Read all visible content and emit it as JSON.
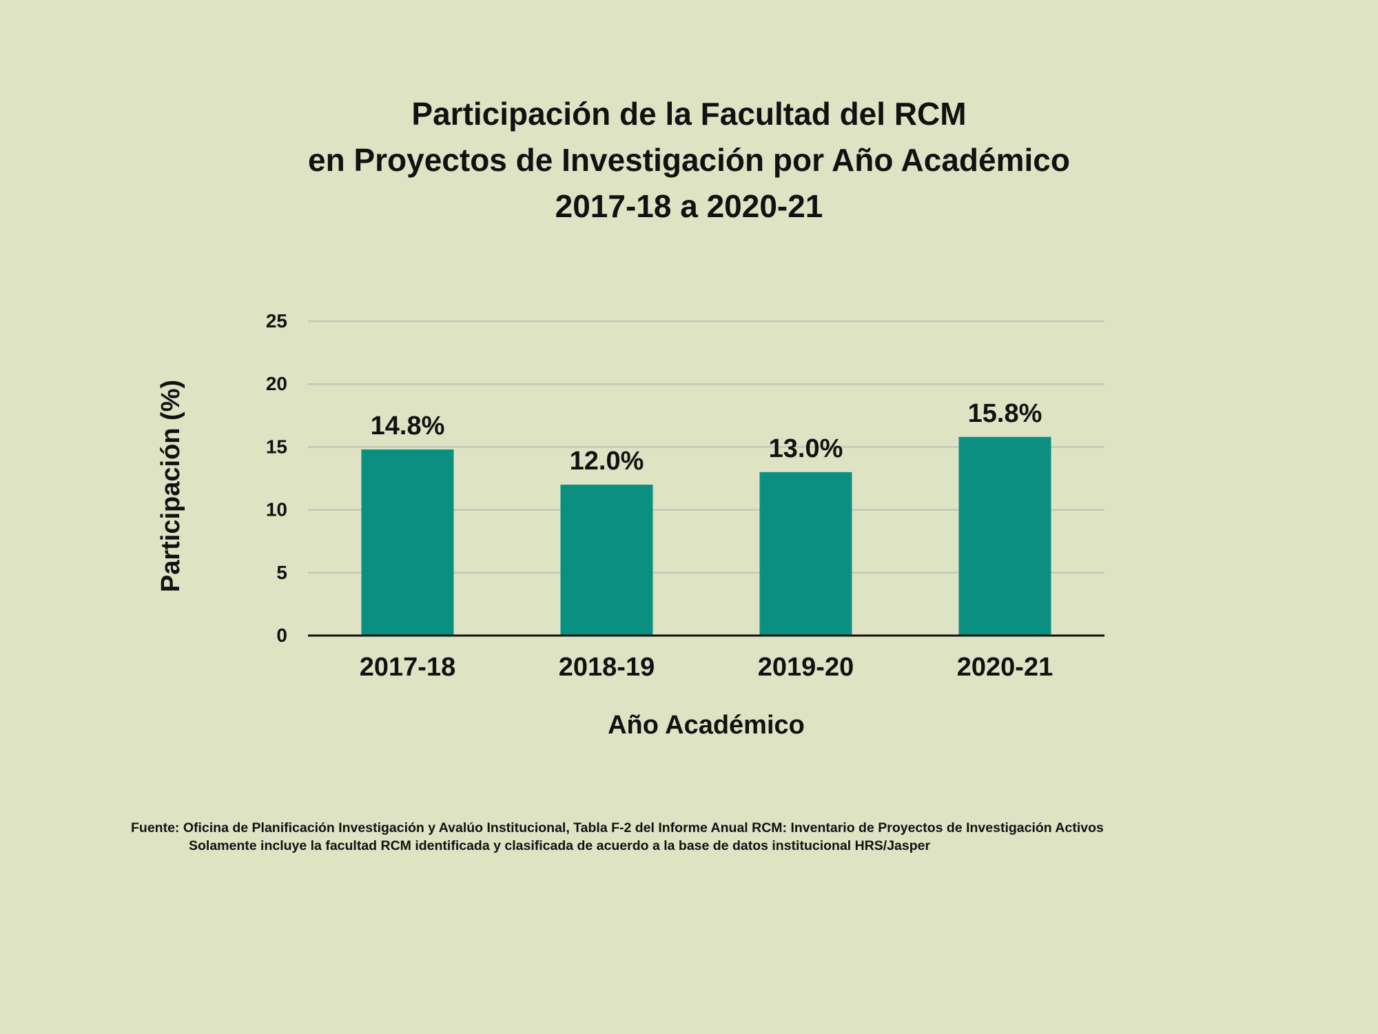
{
  "chart_data": {
    "type": "bar",
    "title": [
      "Participación de la Facultad del RCM",
      "en Proyectos de Investigación por Año Académico",
      "2017-18 a 2020-21"
    ],
    "categories": [
      "2017-18",
      "2018-19",
      "2019-20",
      "2020-21"
    ],
    "values": [
      14.8,
      12.0,
      13.0,
      15.8
    ],
    "data_labels": [
      "14.8%",
      "12.0%",
      "13.0%",
      "15.8%"
    ],
    "xlabel": "Año Académico",
    "ylabel": "Participación (%)",
    "ylim": [
      0,
      25
    ],
    "yticks": [
      0,
      5,
      10,
      15,
      20,
      25
    ],
    "grid": true,
    "legend": "none",
    "bar_color": "#0a8f80",
    "background_color": "#dde3c3"
  },
  "footer": {
    "line1": "Fuente: Oficina de Planificación Investigación y Avalúo Institucional, Tabla F-2 del Informe Anual RCM: Inventario de Proyectos de Investigación Activos",
    "line2": "Solamente incluye la facultad RCM identificada  y clasificada de acuerdo a la base de datos institucional HRS/Jasper"
  }
}
